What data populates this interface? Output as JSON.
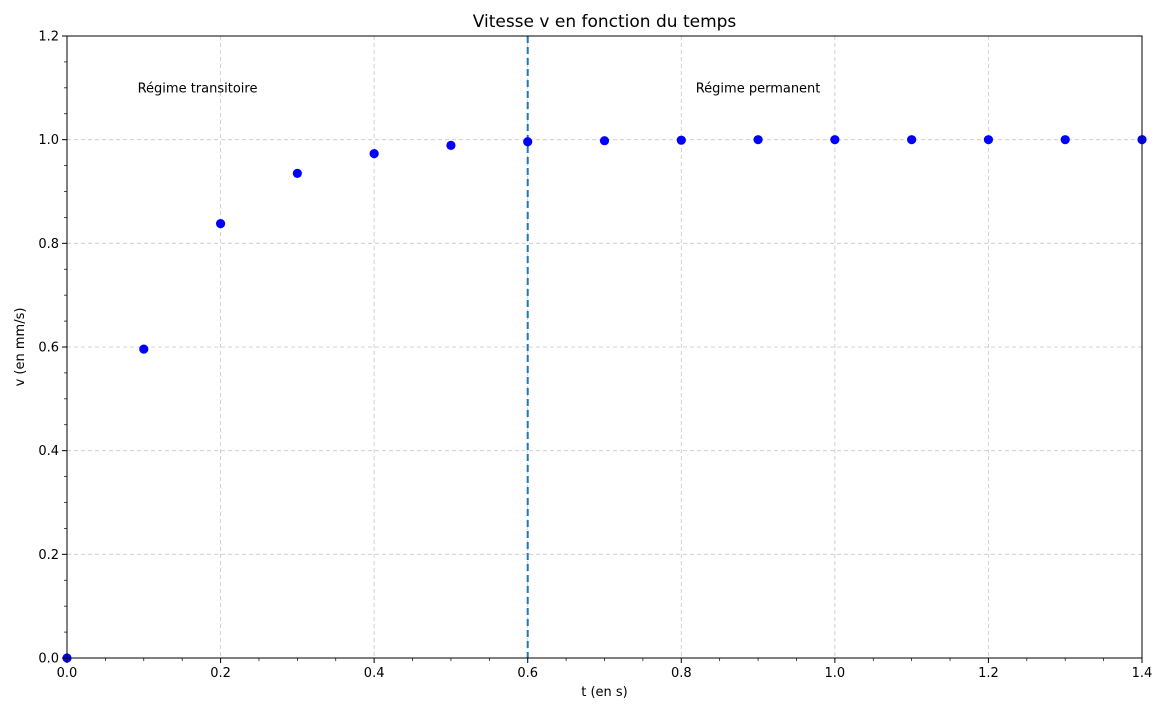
{
  "chart_data": {
    "type": "scatter",
    "title": "Vitesse v en fonction du temps",
    "xlabel": "t (en s)",
    "ylabel": "v (en mm/s)",
    "xlim": [
      0.0,
      1.4
    ],
    "ylim": [
      0.0,
      1.2
    ],
    "xticks": [
      0.0,
      0.2,
      0.4,
      0.6,
      0.8,
      1.0,
      1.2,
      1.4
    ],
    "xtick_labels": [
      "0.0",
      "0.2",
      "0.4",
      "0.6",
      "0.8",
      "1.0",
      "1.2",
      "1.4"
    ],
    "yticks": [
      0.0,
      0.2,
      0.4,
      0.6,
      0.8,
      1.0,
      1.2
    ],
    "ytick_labels": [
      "0.0",
      "0.2",
      "0.4",
      "0.6",
      "0.8",
      "1.0",
      "1.2"
    ],
    "grid": true,
    "series": [
      {
        "color": "#0000ff",
        "x": [
          0.0,
          0.1,
          0.2,
          0.3,
          0.4,
          0.5,
          0.6,
          0.7,
          0.8,
          0.9,
          1.0,
          1.1,
          1.2,
          1.3,
          1.4
        ],
        "y": [
          0.0,
          0.596,
          0.838,
          0.935,
          0.973,
          0.989,
          0.996,
          0.998,
          0.999,
          1.0,
          1.0,
          1.0,
          1.0,
          1.0,
          1.0
        ]
      }
    ],
    "vertical_line": {
      "x": 0.6,
      "style": "dashed",
      "color": "#1f77b4"
    },
    "annotations": [
      {
        "text": "Régime transitoire",
        "x": 0.17,
        "y": 1.1
      },
      {
        "text": "Régime permanent",
        "x": 0.9,
        "y": 1.1
      }
    ]
  }
}
